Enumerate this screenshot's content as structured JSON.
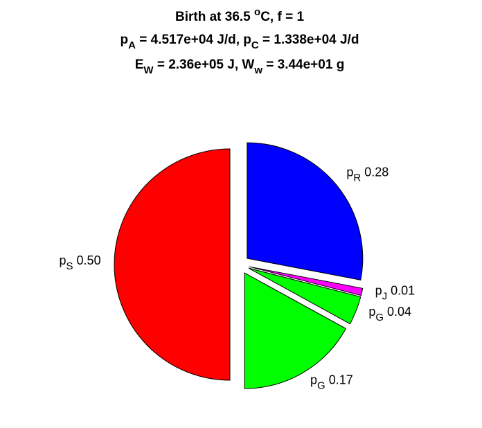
{
  "chart_data": {
    "type": "pie",
    "title": [
      [
        {
          "t": "Birth at 36.5 "
        },
        {
          "t": "o",
          "sup": true
        },
        {
          "t": "C, f = 1"
        }
      ],
      [
        {
          "t": "p"
        },
        {
          "t": "A",
          "sub": true
        },
        {
          "t": " = 4.517e+04 J/d, p"
        },
        {
          "t": "C",
          "sub": true
        },
        {
          "t": " = 1.338e+04 J/d"
        }
      ],
      [
        {
          "t": "E"
        },
        {
          "t": "W",
          "sub": true
        },
        {
          "t": " = 2.36e+05 J, W"
        },
        {
          "t": "w",
          "sub": true
        },
        {
          "t": " = 3.44e+01 g"
        }
      ]
    ],
    "categories": [
      {
        "t": "p",
        "sub": "R"
      },
      {
        "t": "p",
        "sub": "J"
      },
      {
        "t": "p",
        "sub": "G"
      },
      {
        "t": "p",
        "sub": "G"
      },
      {
        "t": "p",
        "sub": "S"
      }
    ],
    "values": [
      0.28,
      0.01,
      0.04,
      0.17,
      0.5
    ],
    "value_labels": [
      "0.28",
      "0.01",
      "0.04",
      "0.17",
      "0.50"
    ],
    "colors": [
      "#0000ff",
      "#ff00ff",
      "#00ff00",
      "#00ff00",
      "#ff0000"
    ]
  }
}
